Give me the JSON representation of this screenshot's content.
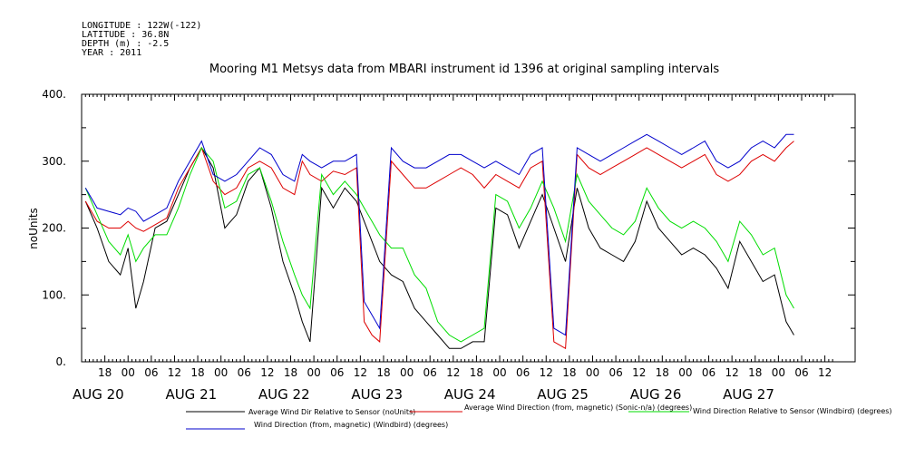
{
  "header": {
    "meta_lines": [
      "LONGITUDE : 122W(-122)",
      "LATITUDE : 36.8N",
      "DEPTH (m) : -2.5",
      "YEAR : 2011"
    ]
  },
  "chart_data": {
    "type": "line",
    "title": "Mooring M1 Metsys data from MBARI instrument id 1396 at original sampling intervals",
    "ylabel": "noUnits",
    "xlabel": "",
    "ylim": [
      0,
      400
    ],
    "yticks": [
      "0.",
      "100.",
      "200.",
      "300.",
      "400."
    ],
    "ytick_values": [
      0,
      100,
      200,
      300,
      400
    ],
    "xlim_hours": [
      12,
      198
    ],
    "xticks": [
      {
        "h": 18,
        "label": "18"
      },
      {
        "h": 24,
        "label": "00"
      },
      {
        "h": 30,
        "label": "06"
      },
      {
        "h": 36,
        "label": "12"
      },
      {
        "h": 42,
        "label": "18"
      },
      {
        "h": 48,
        "label": "00"
      },
      {
        "h": 54,
        "label": "06"
      },
      {
        "h": 60,
        "label": "12"
      },
      {
        "h": 66,
        "label": "18"
      },
      {
        "h": 72,
        "label": "00"
      },
      {
        "h": 78,
        "label": "06"
      },
      {
        "h": 84,
        "label": "12"
      },
      {
        "h": 90,
        "label": "18"
      },
      {
        "h": 96,
        "label": "00"
      },
      {
        "h": 102,
        "label": "06"
      },
      {
        "h": 108,
        "label": "12"
      },
      {
        "h": 114,
        "label": "18"
      },
      {
        "h": 120,
        "label": "00"
      },
      {
        "h": 126,
        "label": "06"
      },
      {
        "h": 132,
        "label": "12"
      },
      {
        "h": 138,
        "label": "18"
      },
      {
        "h": 144,
        "label": "00"
      },
      {
        "h": 150,
        "label": "06"
      },
      {
        "h": 156,
        "label": "12"
      },
      {
        "h": 162,
        "label": "18"
      },
      {
        "h": 168,
        "label": "00"
      },
      {
        "h": 174,
        "label": "06"
      },
      {
        "h": 180,
        "label": "12"
      },
      {
        "h": 186,
        "label": "18"
      },
      {
        "h": 192,
        "label": "00"
      },
      {
        "h": 198,
        "label": "06"
      },
      {
        "h": 204,
        "label": "12"
      }
    ],
    "day_labels": [
      {
        "h": 12,
        "label": "AUG 20"
      },
      {
        "h": 36,
        "label": "AUG 21"
      },
      {
        "h": 60,
        "label": "AUG 22"
      },
      {
        "h": 84,
        "label": "AUG 23"
      },
      {
        "h": 108,
        "label": "AUG 24"
      },
      {
        "h": 132,
        "label": "AUG 25"
      },
      {
        "h": 156,
        "label": "AUG 26"
      },
      {
        "h": 180,
        "label": "AUG 27"
      }
    ],
    "series": [
      {
        "name": "Average Wind Dir Relative to Sensor (noUnits)",
        "color": "#000000",
        "points": [
          [
            13,
            240
          ],
          [
            16,
            200
          ],
          [
            19,
            150
          ],
          [
            22,
            130
          ],
          [
            24,
            170
          ],
          [
            26,
            80
          ],
          [
            28,
            120
          ],
          [
            31,
            200
          ],
          [
            34,
            210
          ],
          [
            37,
            250
          ],
          [
            40,
            290
          ],
          [
            43,
            320
          ],
          [
            46,
            290
          ],
          [
            49,
            200
          ],
          [
            52,
            220
          ],
          [
            55,
            270
          ],
          [
            58,
            290
          ],
          [
            61,
            230
          ],
          [
            64,
            150
          ],
          [
            67,
            100
          ],
          [
            69,
            60
          ],
          [
            71,
            30
          ],
          [
            74,
            260
          ],
          [
            77,
            230
          ],
          [
            80,
            260
          ],
          [
            83,
            240
          ],
          [
            85,
            210
          ],
          [
            87,
            180
          ],
          [
            89,
            150
          ],
          [
            92,
            130
          ],
          [
            95,
            120
          ],
          [
            98,
            80
          ],
          [
            101,
            60
          ],
          [
            104,
            40
          ],
          [
            107,
            20
          ],
          [
            110,
            20
          ],
          [
            113,
            30
          ],
          [
            116,
            30
          ],
          [
            119,
            230
          ],
          [
            122,
            220
          ],
          [
            125,
            170
          ],
          [
            128,
            210
          ],
          [
            131,
            250
          ],
          [
            134,
            200
          ],
          [
            137,
            150
          ],
          [
            140,
            260
          ],
          [
            143,
            200
          ],
          [
            146,
            170
          ],
          [
            149,
            160
          ],
          [
            152,
            150
          ],
          [
            155,
            180
          ],
          [
            158,
            240
          ],
          [
            161,
            200
          ],
          [
            164,
            180
          ],
          [
            167,
            160
          ],
          [
            170,
            170
          ],
          [
            173,
            160
          ],
          [
            176,
            140
          ],
          [
            179,
            110
          ],
          [
            182,
            180
          ],
          [
            185,
            150
          ],
          [
            188,
            120
          ],
          [
            191,
            130
          ],
          [
            194,
            60
          ],
          [
            196,
            40
          ]
        ]
      },
      {
        "name": "Average Wind Direction (from, magnetic) (Sonic-n/a) (degrees)",
        "color": "#dd0000",
        "points": [
          [
            13,
            240
          ],
          [
            16,
            210
          ],
          [
            19,
            200
          ],
          [
            22,
            200
          ],
          [
            24,
            210
          ],
          [
            26,
            200
          ],
          [
            28,
            195
          ],
          [
            31,
            205
          ],
          [
            34,
            215
          ],
          [
            37,
            260
          ],
          [
            40,
            290
          ],
          [
            43,
            320
          ],
          [
            46,
            270
          ],
          [
            49,
            250
          ],
          [
            52,
            260
          ],
          [
            55,
            290
          ],
          [
            58,
            300
          ],
          [
            61,
            290
          ],
          [
            64,
            260
          ],
          [
            67,
            250
          ],
          [
            69,
            300
          ],
          [
            71,
            280
          ],
          [
            74,
            270
          ],
          [
            77,
            285
          ],
          [
            80,
            280
          ],
          [
            83,
            290
          ],
          [
            85,
            60
          ],
          [
            87,
            40
          ],
          [
            89,
            30
          ],
          [
            92,
            300
          ],
          [
            95,
            280
          ],
          [
            98,
            260
          ],
          [
            101,
            260
          ],
          [
            104,
            270
          ],
          [
            107,
            280
          ],
          [
            110,
            290
          ],
          [
            113,
            280
          ],
          [
            116,
            260
          ],
          [
            119,
            280
          ],
          [
            122,
            270
          ],
          [
            125,
            260
          ],
          [
            128,
            290
          ],
          [
            131,
            300
          ],
          [
            134,
            30
          ],
          [
            137,
            20
          ],
          [
            140,
            310
          ],
          [
            143,
            290
          ],
          [
            146,
            280
          ],
          [
            149,
            290
          ],
          [
            152,
            300
          ],
          [
            155,
            310
          ],
          [
            158,
            320
          ],
          [
            161,
            310
          ],
          [
            164,
            300
          ],
          [
            167,
            290
          ],
          [
            170,
            300
          ],
          [
            173,
            310
          ],
          [
            176,
            280
          ],
          [
            179,
            270
          ],
          [
            182,
            280
          ],
          [
            185,
            300
          ],
          [
            188,
            310
          ],
          [
            191,
            300
          ],
          [
            194,
            320
          ],
          [
            196,
            330
          ]
        ]
      },
      {
        "name": "Wind Direction Relative to Sensor (Windbird) (degrees)",
        "color": "#00dd00",
        "points": [
          [
            13,
            260
          ],
          [
            16,
            220
          ],
          [
            19,
            180
          ],
          [
            22,
            160
          ],
          [
            24,
            190
          ],
          [
            26,
            150
          ],
          [
            28,
            170
          ],
          [
            31,
            190
          ],
          [
            34,
            190
          ],
          [
            37,
            230
          ],
          [
            40,
            280
          ],
          [
            43,
            320
          ],
          [
            46,
            300
          ],
          [
            49,
            230
          ],
          [
            52,
            240
          ],
          [
            55,
            280
          ],
          [
            58,
            290
          ],
          [
            61,
            240
          ],
          [
            64,
            180
          ],
          [
            67,
            130
          ],
          [
            69,
            100
          ],
          [
            71,
            80
          ],
          [
            74,
            280
          ],
          [
            77,
            250
          ],
          [
            80,
            270
          ],
          [
            83,
            250
          ],
          [
            85,
            230
          ],
          [
            87,
            210
          ],
          [
            89,
            190
          ],
          [
            92,
            170
          ],
          [
            95,
            170
          ],
          [
            98,
            130
          ],
          [
            101,
            110
          ],
          [
            104,
            60
          ],
          [
            107,
            40
          ],
          [
            110,
            30
          ],
          [
            113,
            40
          ],
          [
            116,
            50
          ],
          [
            119,
            250
          ],
          [
            122,
            240
          ],
          [
            125,
            200
          ],
          [
            128,
            230
          ],
          [
            131,
            270
          ],
          [
            134,
            230
          ],
          [
            137,
            180
          ],
          [
            140,
            280
          ],
          [
            143,
            240
          ],
          [
            146,
            220
          ],
          [
            149,
            200
          ],
          [
            152,
            190
          ],
          [
            155,
            210
          ],
          [
            158,
            260
          ],
          [
            161,
            230
          ],
          [
            164,
            210
          ],
          [
            167,
            200
          ],
          [
            170,
            210
          ],
          [
            173,
            200
          ],
          [
            176,
            180
          ],
          [
            179,
            150
          ],
          [
            182,
            210
          ],
          [
            185,
            190
          ],
          [
            188,
            160
          ],
          [
            191,
            170
          ],
          [
            194,
            100
          ],
          [
            196,
            80
          ]
        ]
      },
      {
        "name": "Wind Direction (from, magnetic) (Windbird) (degrees)",
        "color": "#0000cc",
        "points": [
          [
            13,
            260
          ],
          [
            16,
            230
          ],
          [
            19,
            225
          ],
          [
            22,
            220
          ],
          [
            24,
            230
          ],
          [
            26,
            225
          ],
          [
            28,
            210
          ],
          [
            31,
            220
          ],
          [
            34,
            230
          ],
          [
            37,
            270
          ],
          [
            40,
            300
          ],
          [
            43,
            330
          ],
          [
            46,
            280
          ],
          [
            49,
            270
          ],
          [
            52,
            280
          ],
          [
            55,
            300
          ],
          [
            58,
            320
          ],
          [
            61,
            310
          ],
          [
            64,
            280
          ],
          [
            67,
            270
          ],
          [
            69,
            310
          ],
          [
            71,
            300
          ],
          [
            74,
            290
          ],
          [
            77,
            300
          ],
          [
            80,
            300
          ],
          [
            83,
            310
          ],
          [
            85,
            90
          ],
          [
            87,
            70
          ],
          [
            89,
            50
          ],
          [
            92,
            320
          ],
          [
            95,
            300
          ],
          [
            98,
            290
          ],
          [
            101,
            290
          ],
          [
            104,
            300
          ],
          [
            107,
            310
          ],
          [
            110,
            310
          ],
          [
            113,
            300
          ],
          [
            116,
            290
          ],
          [
            119,
            300
          ],
          [
            122,
            290
          ],
          [
            125,
            280
          ],
          [
            128,
            310
          ],
          [
            131,
            320
          ],
          [
            134,
            50
          ],
          [
            137,
            40
          ],
          [
            140,
            320
          ],
          [
            143,
            310
          ],
          [
            146,
            300
          ],
          [
            149,
            310
          ],
          [
            152,
            320
          ],
          [
            155,
            330
          ],
          [
            158,
            340
          ],
          [
            161,
            330
          ],
          [
            164,
            320
          ],
          [
            167,
            310
          ],
          [
            170,
            320
          ],
          [
            173,
            330
          ],
          [
            176,
            300
          ],
          [
            179,
            290
          ],
          [
            182,
            300
          ],
          [
            185,
            320
          ],
          [
            188,
            330
          ],
          [
            191,
            320
          ],
          [
            194,
            340
          ],
          [
            196,
            340
          ]
        ]
      }
    ],
    "legend_placement": "bottom"
  }
}
